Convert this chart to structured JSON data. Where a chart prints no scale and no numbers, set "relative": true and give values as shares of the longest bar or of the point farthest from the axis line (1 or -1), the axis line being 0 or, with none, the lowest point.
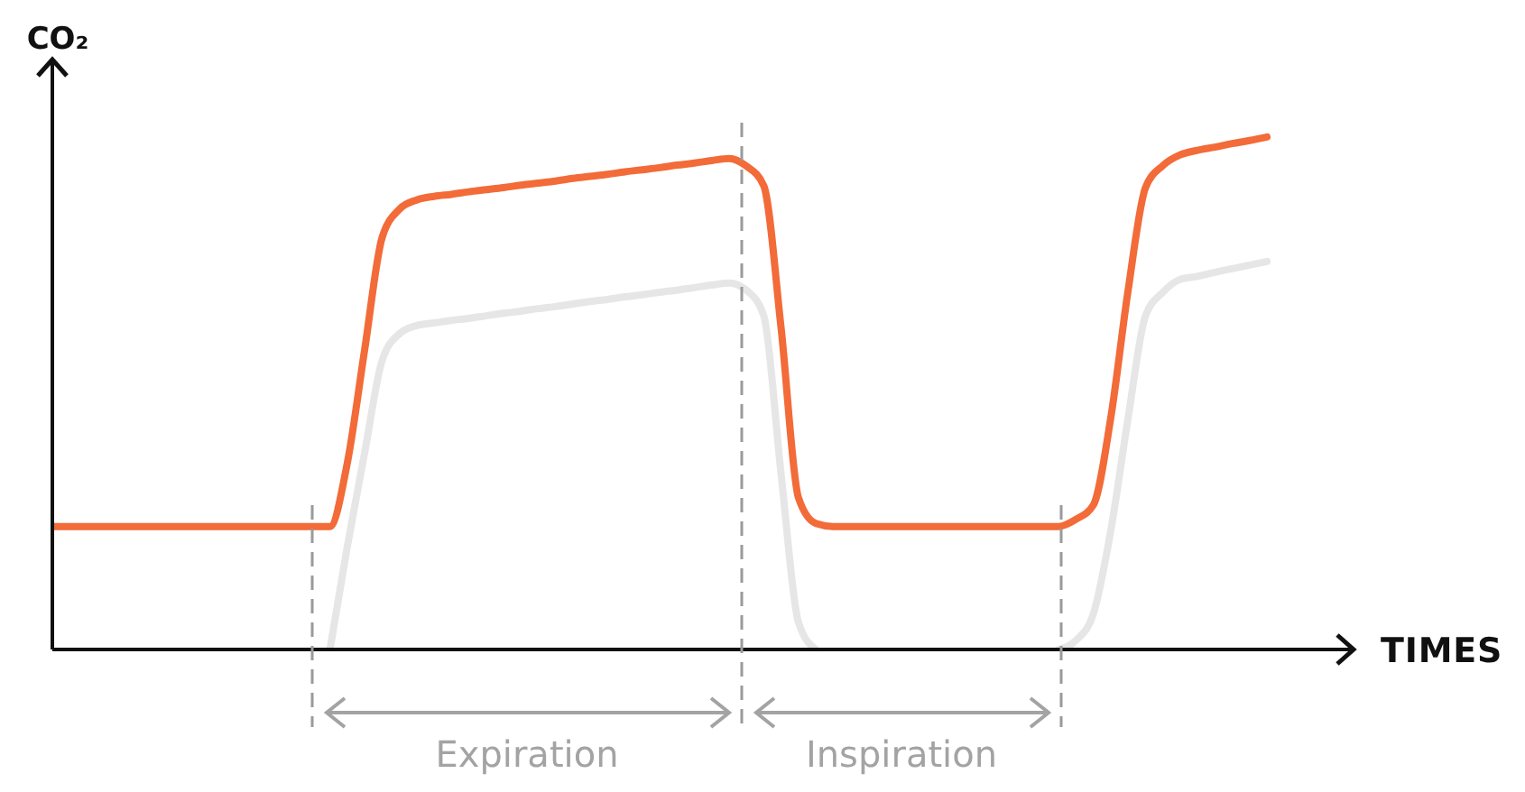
{
  "chart_data": {
    "type": "line",
    "relative": true,
    "xlabel": "TIMES",
    "ylabel": "CO₂",
    "marker": "none",
    "categories": [
      null,
      null,
      null,
      null,
      null,
      null,
      null,
      null,
      null,
      null,
      null,
      null,
      null,
      null,
      null,
      null,
      null,
      null,
      null,
      null,
      null,
      null,
      null,
      null,
      null,
      null,
      null,
      null,
      null,
      null,
      null,
      null,
      null,
      null,
      null,
      null,
      null,
      null,
      null,
      null,
      null,
      null,
      null,
      null,
      null,
      null,
      null,
      null,
      null,
      null,
      null,
      null,
      null,
      null,
      null,
      null,
      null,
      null,
      null,
      null,
      null,
      null,
      null,
      null,
      null,
      null,
      null,
      null,
      null,
      null,
      null
    ],
    "series": [
      {
        "color": "#f26b38",
        "values": [
          0.24,
          0.24,
          0.24,
          0.24,
          0.24,
          0.24,
          0.24,
          0.24,
          0.24,
          0.24,
          0.24,
          0.24,
          0.24,
          0.24,
          0.24,
          0.24,
          0.24,
          0.364,
          0.585,
          0.803,
          0.859,
          0.877,
          0.884,
          0.888,
          0.893,
          0.897,
          0.901,
          0.906,
          0.91,
          0.914,
          0.919,
          0.923,
          0.927,
          0.932,
          0.936,
          0.94,
          0.945,
          0.949,
          0.954,
          0.958,
          0.943,
          0.905,
          0.627,
          0.296,
          0.246,
          0.24,
          0.24,
          0.24,
          0.24,
          0.24,
          0.24,
          0.24,
          0.24,
          0.24,
          0.24,
          0.24,
          0.24,
          0.24,
          0.24,
          0.254,
          0.282,
          0.452,
          0.701,
          0.901,
          0.944,
          0.965,
          0.974,
          0.98,
          0.987,
          0.993,
          1
        ]
      },
      {
        "color": "#e6e6e6",
        "values": [
          null,
          null,
          null,
          null,
          null,
          null,
          null,
          null,
          null,
          null,
          null,
          null,
          null,
          null,
          null,
          null,
          0,
          0.201,
          0.384,
          0.563,
          0.616,
          0.632,
          0.637,
          0.642,
          0.646,
          0.651,
          0.656,
          0.66,
          0.665,
          0.669,
          0.674,
          0.679,
          0.683,
          0.688,
          0.692,
          0.697,
          0.701,
          0.706,
          0.711,
          0.715,
          0.701,
          0.651,
          0.342,
          0.053,
          0,
          null,
          null,
          null,
          null,
          null,
          null,
          null,
          null,
          null,
          null,
          null,
          null,
          null,
          0,
          0.018,
          0.07,
          0.232,
          0.452,
          0.651,
          0.697,
          0.722,
          0.728,
          0.736,
          0.743,
          0.75,
          0.757
        ]
      }
    ],
    "annotations": [
      "Expiration",
      "Inspiration"
    ]
  }
}
